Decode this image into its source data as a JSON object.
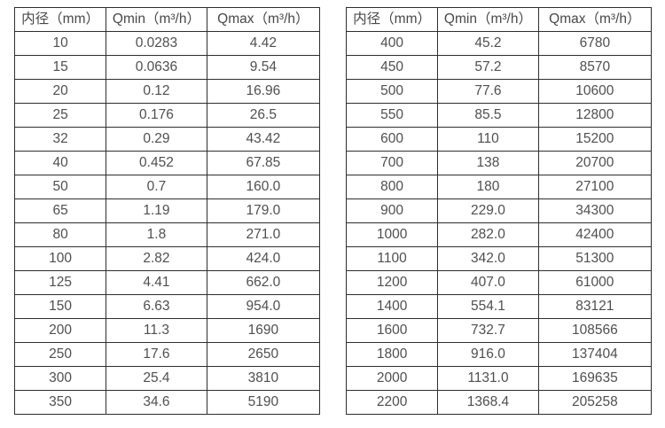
{
  "tables": [
    {
      "name": "flow-spec-small-diameters",
      "headers": [
        "内径（mm）",
        "Qmin（m³/h）",
        "Qmax（m³/h）"
      ],
      "rows": [
        [
          "10",
          "0.0283",
          "4.42"
        ],
        [
          "15",
          "0.0636",
          "9.54"
        ],
        [
          "20",
          "0.12",
          "16.96"
        ],
        [
          "25",
          "0.176",
          "26.5"
        ],
        [
          "32",
          "0.29",
          "43.42"
        ],
        [
          "40",
          "0.452",
          "67.85"
        ],
        [
          "50",
          "0.7",
          "160.0"
        ],
        [
          "65",
          "1.19",
          "179.0"
        ],
        [
          "80",
          "1.8",
          "271.0"
        ],
        [
          "100",
          "2.82",
          "424.0"
        ],
        [
          "125",
          "4.41",
          "662.0"
        ],
        [
          "150",
          "6.63",
          "954.0"
        ],
        [
          "200",
          "11.3",
          "1690"
        ],
        [
          "250",
          "17.6",
          "2650"
        ],
        [
          "300",
          "25.4",
          "3810"
        ],
        [
          "350",
          "34.6",
          "5190"
        ]
      ]
    },
    {
      "name": "flow-spec-large-diameters",
      "headers": [
        "内径（mm）",
        "Qmin（m³/h）",
        "Qmax（m³/h）"
      ],
      "rows": [
        [
          "400",
          "45.2",
          "6780"
        ],
        [
          "450",
          "57.2",
          "8570"
        ],
        [
          "500",
          "77.6",
          "10600"
        ],
        [
          "550",
          "85.5",
          "12800"
        ],
        [
          "600",
          "110",
          "15200"
        ],
        [
          "700",
          "138",
          "20700"
        ],
        [
          "800",
          "180",
          "27100"
        ],
        [
          "900",
          "229.0",
          "34300"
        ],
        [
          "1000",
          "282.0",
          "42400"
        ],
        [
          "1100",
          "342.0",
          "51300"
        ],
        [
          "1200",
          "407.0",
          "61000"
        ],
        [
          "1400",
          "554.1",
          "83121"
        ],
        [
          "1600",
          "732.7",
          "108566"
        ],
        [
          "1800",
          "916.0",
          "137404"
        ],
        [
          "2000",
          "1131.0",
          "169635"
        ],
        [
          "2200",
          "1368.4",
          "205258"
        ]
      ]
    }
  ]
}
